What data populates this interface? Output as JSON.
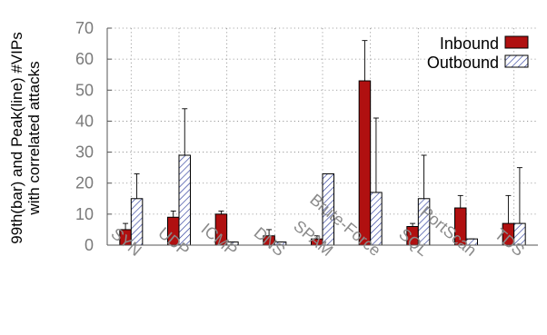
{
  "chart_data": {
    "type": "bar",
    "title": "",
    "ylabel_lines": [
      "99th(bar) and Peak(line) #VIPs",
      "with correlated attacks"
    ],
    "xlabel": "",
    "ylim": [
      0,
      70
    ],
    "yticks": [
      0,
      10,
      20,
      30,
      40,
      50,
      60,
      70
    ],
    "grid": "dotted, both axes",
    "legend_position": "top-right",
    "categories": [
      "SYN",
      "UDP",
      "ICMP",
      "DNS",
      "SPAM",
      "Brute-Force",
      "SQL",
      "PortScan",
      "TDS"
    ],
    "series": [
      {
        "name": "Inbound",
        "style": "solid dark red fill",
        "color": "#b01010",
        "values": [
          5,
          9,
          10,
          3,
          2,
          53,
          6,
          12,
          7
        ],
        "peak": [
          7,
          11,
          11,
          5,
          3,
          66,
          7,
          16,
          16
        ]
      },
      {
        "name": "Outbound",
        "style": "diagonal blue hatch",
        "color": "#2a3a9a",
        "values": [
          15,
          29,
          1,
          1,
          23,
          17,
          15,
          2,
          7
        ],
        "peak": [
          23,
          44,
          1,
          1,
          23,
          41,
          29,
          2,
          25
        ]
      }
    ]
  }
}
